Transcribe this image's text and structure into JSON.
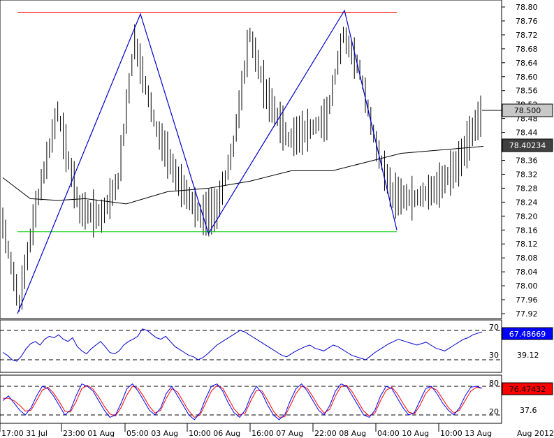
{
  "chart_data": [
    {
      "type": "candlestick",
      "panel": "price",
      "title": "",
      "xlabel": "",
      "ylabel": "",
      "ylim": [
        77.9,
        78.82
      ],
      "yticks": [
        "78.80",
        "78.76",
        "78.72",
        "78.68",
        "78.64",
        "78.60",
        "78.56",
        "78.52",
        "78.48",
        "78.44",
        "78.40",
        "78.36",
        "78.32",
        "78.28",
        "78.24",
        "78.20",
        "78.16",
        "78.12",
        "78.08",
        "78.04",
        "78.00",
        "77.96",
        "77.92"
      ],
      "xticks": [
        "17:00 31 Jul",
        "23:00 01 Aug",
        "05:00 03 Aug",
        "10:00 06 Aug",
        "16:00 07 Aug",
        "22:00 08 Aug",
        "04:00 10 Aug",
        "10:00 13 Aug",
        "Aug 2012"
      ],
      "current_price": "78.500",
      "moving_average_value": "78.40234",
      "resistance_level": 78.785,
      "support_level": 78.155,
      "zigzag": [
        {
          "x": 0,
          "y": 77.92
        },
        {
          "x": 47,
          "y": 78.78
        },
        {
          "x": 73,
          "y": 78.15
        },
        {
          "x": 125,
          "y": 78.79
        },
        {
          "x": 145,
          "y": 78.16
        }
      ],
      "moving_average": [
        {
          "x": 0,
          "y": 78.31
        },
        {
          "x": 10,
          "y": 78.25
        },
        {
          "x": 20,
          "y": 78.245
        },
        {
          "x": 30,
          "y": 78.25
        },
        {
          "x": 45,
          "y": 78.235
        },
        {
          "x": 60,
          "y": 78.27
        },
        {
          "x": 75,
          "y": 78.28
        },
        {
          "x": 90,
          "y": 78.3
        },
        {
          "x": 105,
          "y": 78.33
        },
        {
          "x": 120,
          "y": 78.33
        },
        {
          "x": 135,
          "y": 78.36
        },
        {
          "x": 145,
          "y": 78.38
        },
        {
          "x": 160,
          "y": 78.39
        },
        {
          "x": 175,
          "y": 78.4
        }
      ]
    },
    {
      "type": "line",
      "panel": "rsi",
      "ylim": [
        0,
        100
      ],
      "levels": [
        70,
        30
      ],
      "level_labels": [
        "70",
        "30"
      ],
      "mid_label": "39.12",
      "current_value": "67.48669",
      "series": [
        {
          "values": [
            40,
            36,
            30,
            28,
            35,
            45,
            52,
            55,
            50,
            58,
            62,
            60,
            64,
            58,
            55,
            60,
            48,
            42,
            38,
            45,
            50,
            55,
            48,
            40,
            38,
            42,
            50,
            55,
            58,
            62,
            72,
            70,
            65,
            60,
            58,
            62,
            55,
            48,
            44,
            40,
            36,
            34,
            30,
            33,
            38,
            44,
            50,
            54,
            58,
            62,
            66,
            70,
            68,
            64,
            60,
            56,
            52,
            48,
            44,
            40,
            36,
            34,
            38,
            42,
            45,
            48,
            50,
            46,
            44,
            42,
            46,
            50,
            48,
            44,
            40,
            36,
            34,
            32,
            30,
            35,
            40,
            44,
            48,
            52,
            55,
            58,
            56,
            54,
            52,
            50,
            52,
            54,
            50,
            46,
            44,
            42,
            46,
            50,
            54,
            58,
            60,
            64,
            66,
            68
          ]
        }
      ]
    },
    {
      "type": "line",
      "panel": "stochastic",
      "ylim": [
        0,
        100
      ],
      "levels": [
        80,
        20
      ],
      "level_labels": [
        "80",
        "20"
      ],
      "mid_label": "37.6",
      "current_value": "76.47432",
      "series": [
        {
          "color": "#0000ff",
          "values": [
            50,
            60,
            45,
            30,
            20,
            35,
            60,
            80,
            75,
            60,
            40,
            20,
            30,
            60,
            85,
            80,
            70,
            50,
            30,
            15,
            20,
            45,
            75,
            85,
            70,
            50,
            30,
            20,
            35,
            65,
            80,
            60,
            40,
            20,
            10,
            25,
            55,
            80,
            85,
            70,
            45,
            25,
            15,
            30,
            60,
            80,
            65,
            40,
            20,
            10,
            20,
            50,
            75,
            85,
            70,
            50,
            30,
            20,
            40,
            70,
            85,
            80,
            60,
            40,
            20,
            15,
            30,
            60,
            80,
            75,
            55,
            35,
            20,
            25,
            50,
            75,
            80,
            65,
            45,
            30,
            20,
            35,
            60,
            78,
            80,
            76
          ]
        },
        {
          "color": "#ff0000",
          "values": [
            55,
            55,
            50,
            40,
            28,
            30,
            50,
            72,
            78,
            66,
            48,
            28,
            26,
            48,
            75,
            82,
            74,
            58,
            38,
            22,
            18,
            36,
            62,
            80,
            76,
            58,
            38,
            24,
            30,
            55,
            75,
            68,
            48,
            28,
            15,
            20,
            45,
            70,
            82,
            76,
            55,
            33,
            20,
            24,
            50,
            72,
            70,
            50,
            28,
            15,
            16,
            40,
            65,
            80,
            76,
            58,
            38,
            24,
            32,
            60,
            80,
            82,
            68,
            48,
            28,
            18,
            24,
            50,
            72,
            78,
            64,
            44,
            26,
            22,
            40,
            65,
            78,
            72,
            54,
            36,
            24,
            30,
            50,
            70,
            78,
            76
          ]
        }
      ]
    }
  ]
}
